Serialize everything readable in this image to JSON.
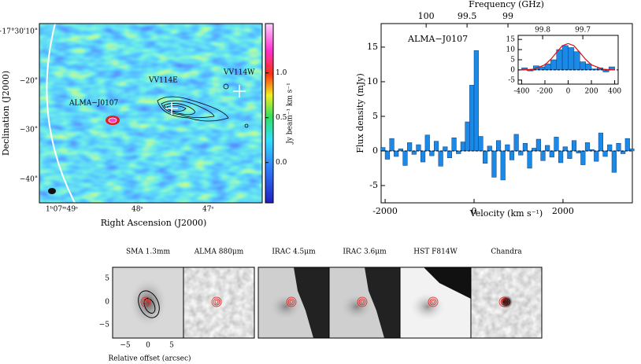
{
  "map": {
    "labels": [
      "ALMA−J0107",
      "VV114E",
      "VV114W"
    ],
    "xticks": [
      "1ʰ07ᵐ49ˢ",
      "48ˢ",
      "47ˢ"
    ],
    "yticks": [
      "−17°30'10\"",
      "−20\"",
      "−30\"",
      "−40\""
    ],
    "xlabel": "Right Ascension (J2000)",
    "ylabel": "Declination (J2000)",
    "colorbar": {
      "label": "Jy beam⁻¹ km s⁻¹",
      "lim": [
        -0.45,
        1.55
      ],
      "ticks": [
        {
          "value": 0,
          "label": "0.0"
        },
        0.5,
        {
          "value": 1,
          "label": "1.0"
        }
      ]
    }
  },
  "spectrum": {
    "type": "bar",
    "label": "ALMA−J0107",
    "xlabel": "Velocity (km s⁻¹)",
    "ylabel": "Flux density (mJy)",
    "x2label": "Frequency (GHz)",
    "bins": [
      -2100,
      -2000,
      -1900,
      -1800,
      -1700,
      -1600,
      -1500,
      -1400,
      -1300,
      -1200,
      -1100,
      -1000,
      -900,
      -800,
      -700,
      -600,
      -500,
      -400,
      -300,
      -200,
      -100,
      0,
      100,
      200,
      300,
      400,
      500,
      600,
      700,
      800,
      900,
      1000,
      1100,
      1200,
      1300,
      1400,
      1500,
      1600,
      1700,
      1800,
      1900,
      2000,
      2100,
      2200,
      2300,
      2400,
      2500,
      2600,
      2700,
      2800,
      2900,
      3000,
      3100,
      3200,
      3300,
      3400,
      3500,
      3600
    ],
    "values": [
      0.5,
      -1.2,
      1.8,
      -0.8,
      0.3,
      -2.1,
      1.2,
      -0.5,
      0.9,
      -1.6,
      2.3,
      -0.7,
      1.4,
      -2.2,
      0.6,
      -1.0,
      1.9,
      -0.4,
      1.3,
      4.2,
      9.5,
      14.5,
      2.1,
      -1.8,
      0.7,
      -3.8,
      1.5,
      -4.2,
      0.9,
      -1.3,
      2.4,
      -0.6,
      1.1,
      -2.5,
      0.4,
      1.7,
      -1.4,
      0.8,
      -0.9,
      2.0,
      -1.7,
      0.6,
      -1.1,
      1.5,
      -0.3,
      -2.0,
      1.2,
      0.2,
      -1.5,
      2.6,
      -0.8,
      0.9,
      -3.1,
      1.1,
      -0.4,
      1.8,
      0.3
    ],
    "xlim": [
      -2090,
      3560
    ],
    "ylim": [
      -7.5,
      18.4
    ],
    "xticks": [
      -2000,
      0,
      2000
    ],
    "yticks": [
      -5,
      0,
      5,
      10,
      15
    ],
    "x2lim": [
      100.55,
      97.48
    ],
    "x2ticks": [
      100,
      99.5,
      99
    ],
    "inset": {
      "bins": [
        -400,
        -350,
        -300,
        -250,
        -200,
        -150,
        -100,
        -50,
        0,
        50,
        100,
        150,
        200,
        250,
        300,
        350,
        400
      ],
      "values": [
        1,
        -0.5,
        2,
        1.5,
        3,
        5,
        10,
        12,
        11,
        9,
        4,
        3,
        0.5,
        1,
        -1,
        1.5
      ],
      "fit": {
        "x": [
          -400,
          -300,
          -200,
          -150,
          -100,
          -50,
          0,
          50,
          100,
          150,
          200,
          300,
          400
        ],
        "values": [
          0.02,
          0.3,
          2.5,
          5.2,
          8.6,
          11.9,
          13,
          11.9,
          8.6,
          5.2,
          2.5,
          0.3,
          0.02
        ]
      },
      "xlim": [
        -430,
        430
      ],
      "ylim": [
        -7,
        17
      ],
      "xticks": [
        -400,
        -200,
        0,
        200,
        400
      ],
      "yticks": [
        -5,
        0,
        5,
        10,
        15
      ],
      "x2lim": [
        99.861,
        99.612
      ],
      "x2ticks": [
        99.8,
        99.7
      ]
    }
  },
  "cutouts": {
    "titles": [
      "SMA  1.3mm",
      "ALMA 880μm",
      "IRAC 4.5μm",
      "IRAC 3.6μm",
      "HST F814W",
      "Chandra"
    ],
    "yticks": [
      "5",
      "0",
      "−5"
    ],
    "xticks": [
      "−5",
      "0",
      "5"
    ],
    "xlabel": "Relative offset (arcsec)"
  }
}
